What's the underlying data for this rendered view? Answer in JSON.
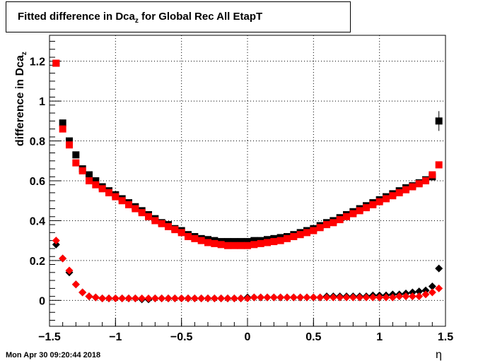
{
  "title_main": "Fitted difference in Dca",
  "title_sub": "z",
  "title_rest": " for Global Rec All EtapT",
  "ylabel_main": "difference in Dca",
  "ylabel_sub": "z",
  "xlabel": "η",
  "timestamp": "Mon Apr 30 09:20:44 2018",
  "colors": {
    "series1": "#000000",
    "series2": "#ff0000",
    "grid": "#000000"
  },
  "chart_data": {
    "type": "scatter",
    "title": "Fitted difference in Dca_z for Global Rec All EtapT",
    "xlabel": "η",
    "ylabel": "difference in Dca_z",
    "xlim": [
      -1.5,
      1.5
    ],
    "ylim": [
      -0.13,
      1.33
    ],
    "grid": true,
    "xticks": [
      -1.5,
      -1,
      -0.5,
      0,
      0.5,
      1,
      1.5
    ],
    "xtick_labels": [
      "−1.5",
      "−1",
      "−0.5",
      "0",
      "0.5",
      "1",
      "1.5"
    ],
    "yticks": [
      0,
      0.2,
      0.4,
      0.6,
      0.8,
      1,
      1.2
    ],
    "ytick_labels": [
      "0",
      "0.2",
      "0.4",
      "0.6",
      "0.8",
      "1",
      "1.2"
    ],
    "x": [
      -1.45,
      -1.4,
      -1.35,
      -1.3,
      -1.25,
      -1.2,
      -1.15,
      -1.1,
      -1.05,
      -1.0,
      -0.95,
      -0.9,
      -0.85,
      -0.8,
      -0.75,
      -0.7,
      -0.65,
      -0.6,
      -0.55,
      -0.5,
      -0.45,
      -0.4,
      -0.35,
      -0.3,
      -0.25,
      -0.2,
      -0.15,
      -0.1,
      -0.05,
      0.0,
      0.05,
      0.1,
      0.15,
      0.2,
      0.25,
      0.3,
      0.35,
      0.4,
      0.45,
      0.5,
      0.55,
      0.6,
      0.65,
      0.7,
      0.75,
      0.8,
      0.85,
      0.9,
      0.95,
      1.0,
      1.05,
      1.1,
      1.15,
      1.2,
      1.25,
      1.3,
      1.35,
      1.4,
      1.45
    ],
    "series": [
      {
        "marker": "square",
        "color": "#000000",
        "values": [
          1.19,
          0.89,
          0.8,
          0.73,
          0.66,
          0.63,
          0.6,
          0.57,
          0.55,
          0.53,
          0.51,
          0.49,
          0.47,
          0.45,
          0.43,
          0.41,
          0.39,
          0.38,
          0.36,
          0.35,
          0.33,
          0.32,
          0.31,
          0.305,
          0.3,
          0.295,
          0.295,
          0.295,
          0.295,
          0.295,
          0.3,
          0.3,
          0.305,
          0.31,
          0.315,
          0.32,
          0.33,
          0.34,
          0.35,
          0.36,
          0.375,
          0.39,
          0.4,
          0.415,
          0.43,
          0.445,
          0.46,
          0.475,
          0.49,
          0.505,
          0.52,
          0.535,
          0.55,
          0.565,
          0.575,
          0.59,
          0.605,
          0.62,
          0.9
        ]
      },
      {
        "marker": "square",
        "color": "#ff0000",
        "values": [
          1.19,
          0.86,
          0.78,
          0.69,
          0.65,
          0.6,
          0.58,
          0.56,
          0.54,
          0.52,
          0.5,
          0.48,
          0.46,
          0.44,
          0.42,
          0.4,
          0.385,
          0.37,
          0.355,
          0.34,
          0.32,
          0.31,
          0.3,
          0.29,
          0.285,
          0.28,
          0.275,
          0.275,
          0.275,
          0.275,
          0.28,
          0.285,
          0.29,
          0.295,
          0.3,
          0.31,
          0.32,
          0.33,
          0.34,
          0.35,
          0.365,
          0.38,
          0.39,
          0.405,
          0.42,
          0.435,
          0.45,
          0.465,
          0.48,
          0.495,
          0.51,
          0.525,
          0.54,
          0.555,
          0.57,
          0.585,
          0.6,
          0.63,
          0.68
        ]
      },
      {
        "marker": "diamond",
        "color": "#000000",
        "values": [
          0.28,
          0.21,
          0.14,
          0.08,
          0.04,
          0.02,
          0.015,
          0.01,
          0.01,
          0.01,
          0.01,
          0.01,
          0.01,
          0.005,
          0.005,
          0.01,
          0.01,
          0.01,
          0.01,
          0.01,
          0.01,
          0.01,
          0.01,
          0.01,
          0.01,
          0.01,
          0.01,
          0.01,
          0.01,
          0.015,
          0.015,
          0.015,
          0.015,
          0.015,
          0.015,
          0.015,
          0.015,
          0.015,
          0.015,
          0.015,
          0.015,
          0.02,
          0.02,
          0.02,
          0.02,
          0.02,
          0.02,
          0.02,
          0.025,
          0.025,
          0.025,
          0.03,
          0.03,
          0.035,
          0.04,
          0.045,
          0.05,
          0.07,
          0.16
        ]
      },
      {
        "marker": "diamond",
        "color": "#ff0000",
        "values": [
          0.3,
          0.21,
          0.15,
          0.08,
          0.04,
          0.02,
          0.015,
          0.01,
          0.01,
          0.01,
          0.01,
          0.01,
          0.01,
          0.01,
          0.01,
          0.01,
          0.01,
          0.01,
          0.01,
          0.01,
          0.01,
          0.01,
          0.01,
          0.01,
          0.01,
          0.01,
          0.01,
          0.01,
          0.01,
          0.01,
          0.015,
          0.015,
          0.015,
          0.015,
          0.015,
          0.015,
          0.015,
          0.015,
          0.015,
          0.015,
          0.015,
          0.015,
          0.015,
          0.015,
          0.015,
          0.015,
          0.015,
          0.015,
          0.015,
          0.015,
          0.015,
          0.015,
          0.02,
          0.02,
          0.02,
          0.02,
          0.03,
          0.04,
          0.06
        ]
      }
    ]
  }
}
